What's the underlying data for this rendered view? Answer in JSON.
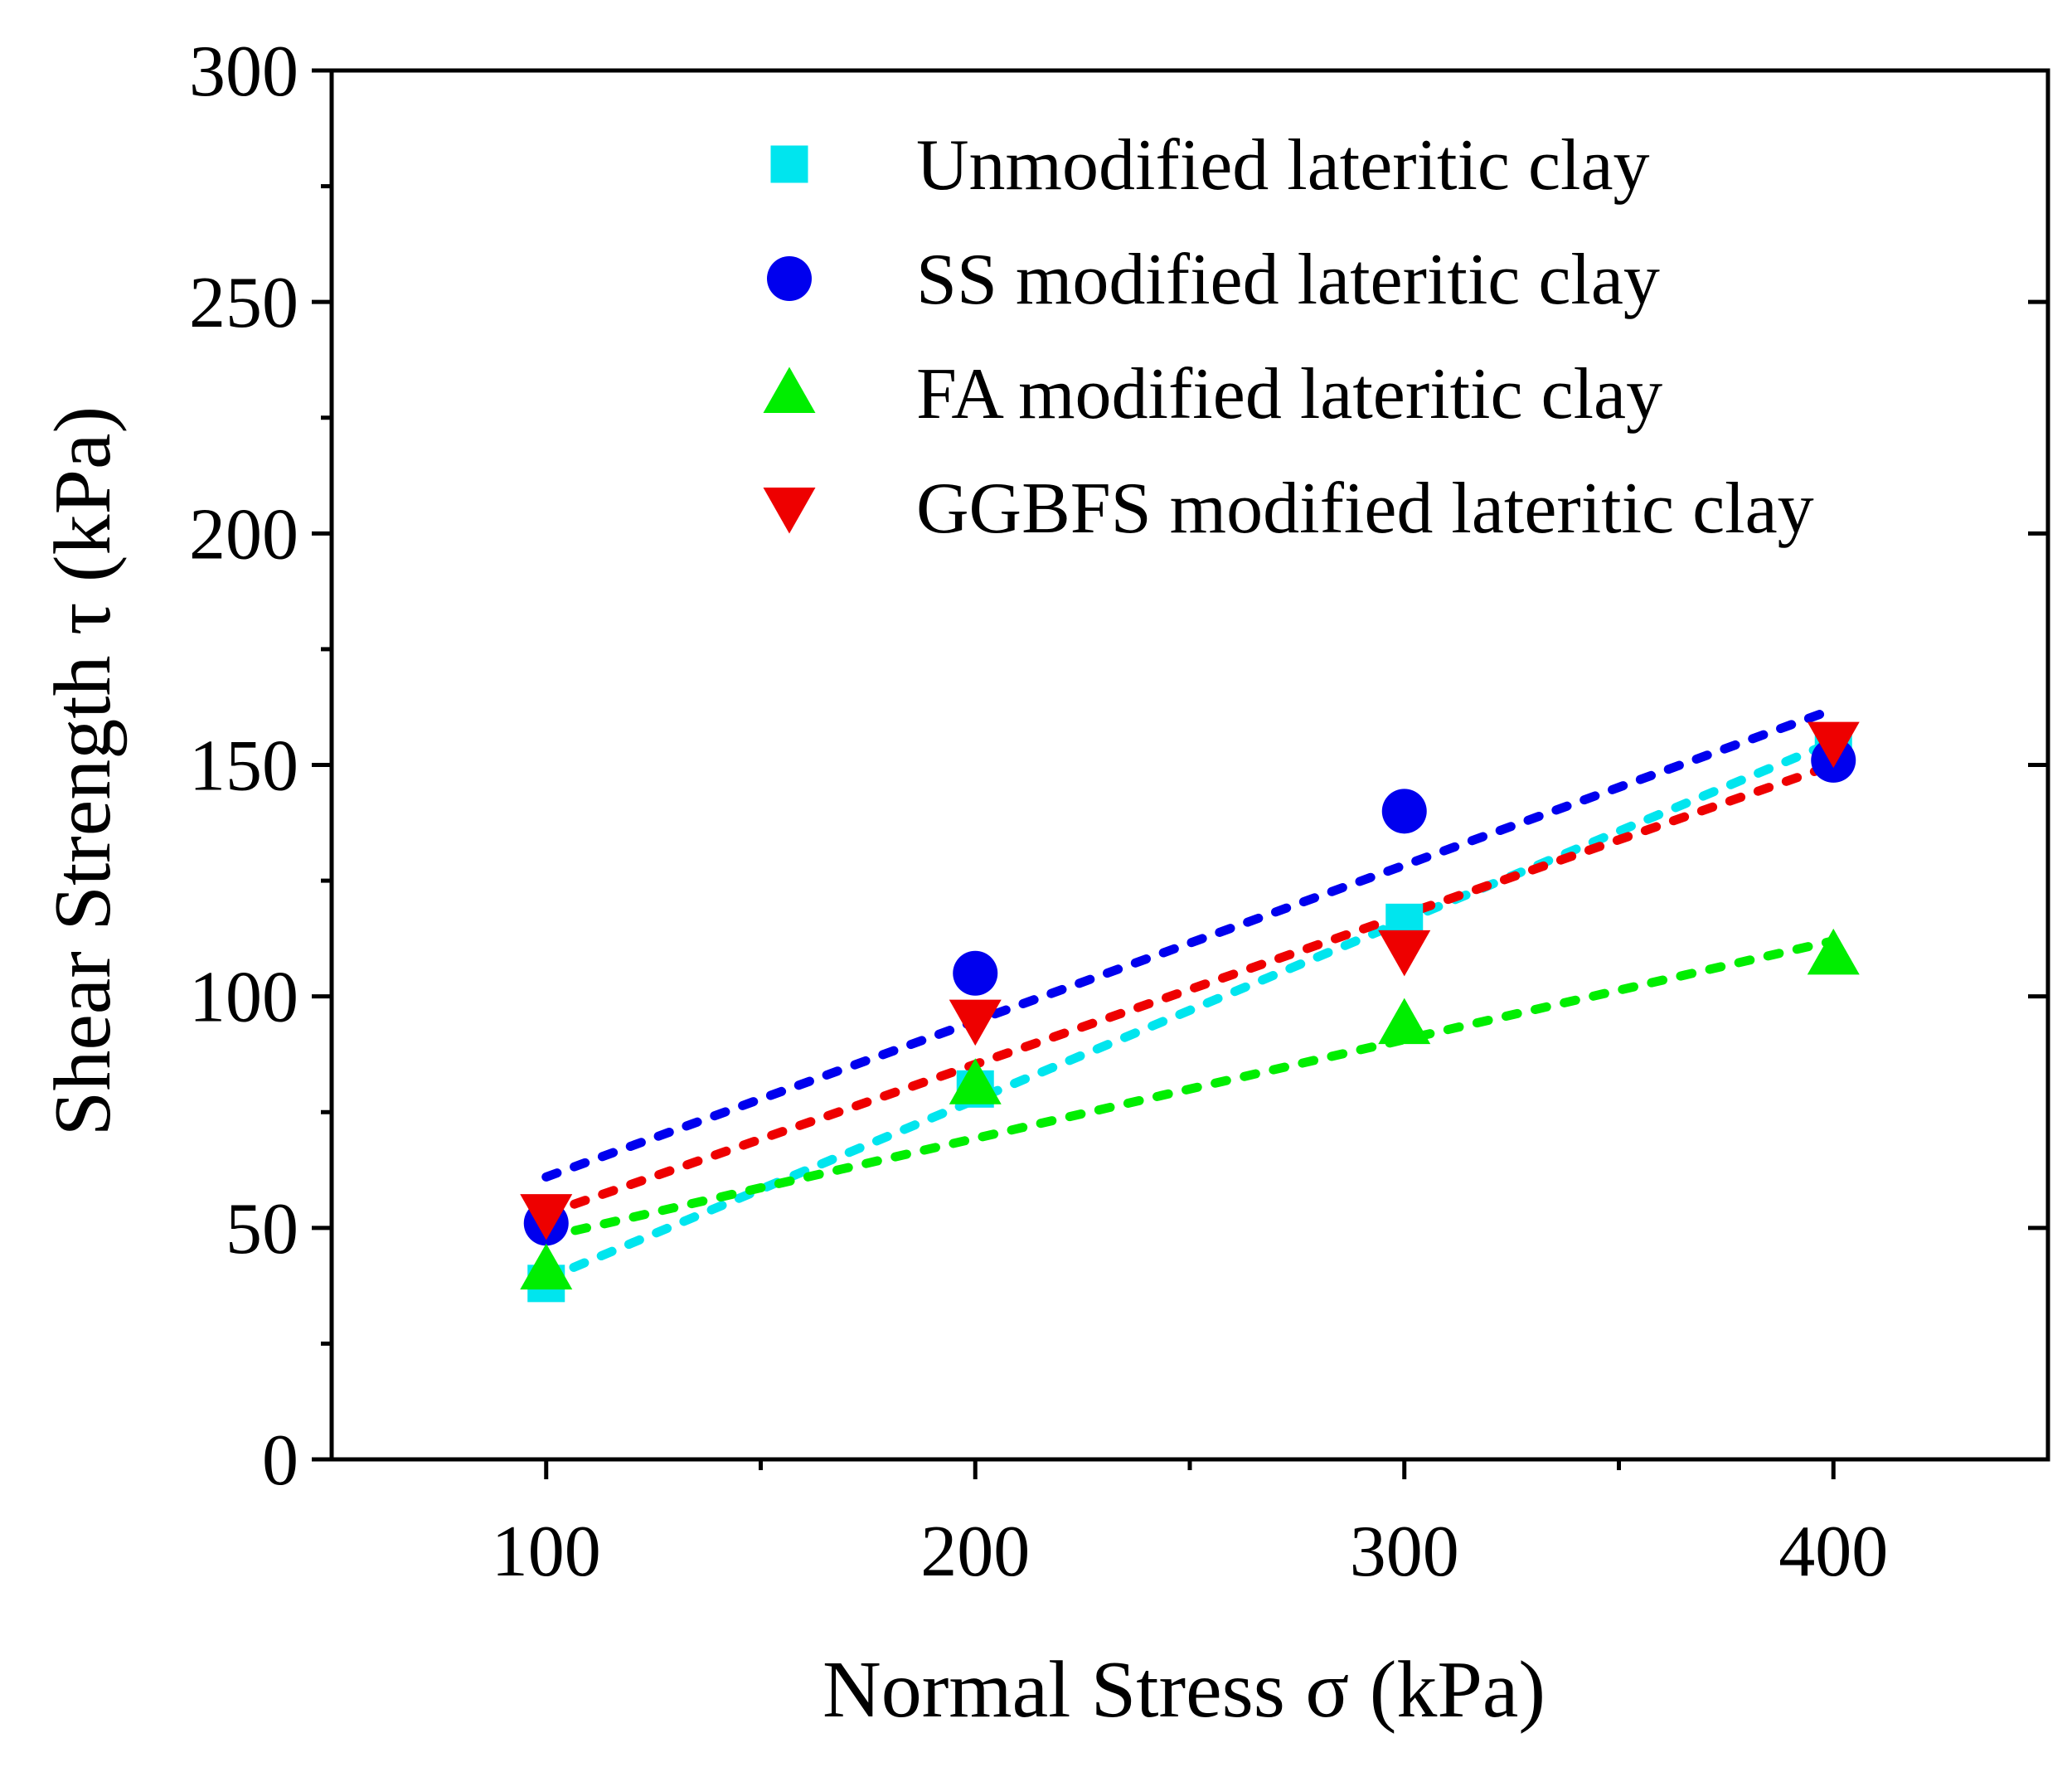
{
  "chart_data": {
    "type": "scatter",
    "title": "",
    "xlabel": "Normal Stress σ (kPa)",
    "ylabel": "Shear Strength τ (kPa)",
    "xlim": [
      50,
      450
    ],
    "ylim": [
      0,
      300
    ],
    "xticks": [
      100,
      200,
      300,
      400
    ],
    "yticks": [
      0,
      50,
      100,
      150,
      200,
      250,
      300
    ],
    "x_minor_ticks": [
      150,
      250,
      350
    ],
    "y_minor_ticks": [
      25,
      75,
      125,
      175,
      225,
      275
    ],
    "legend_position": "top-right",
    "series": [
      {
        "name": "Unmodified lateritic clay",
        "marker": "square",
        "color": "#00e5ee",
        "x": [
          100,
          200,
          300,
          400
        ],
        "y": [
          38,
          80,
          116,
          155
        ],
        "fit": {
          "x": [
            100,
            400
          ],
          "y": [
            39,
            155
          ]
        }
      },
      {
        "name": "SS modified lateritic clay",
        "marker": "circle",
        "color": "#0000ee",
        "x": [
          100,
          200,
          300,
          400
        ],
        "y": [
          51,
          105,
          140,
          151
        ],
        "fit": {
          "x": [
            100,
            400
          ],
          "y": [
            61,
            162
          ]
        }
      },
      {
        "name": "FA modified lateritic clay",
        "marker": "triangle-up",
        "color": "#00ee00",
        "x": [
          100,
          200,
          300,
          400
        ],
        "y": [
          41,
          81,
          94,
          109
        ],
        "fit": {
          "x": [
            100,
            400
          ],
          "y": [
            48,
            112
          ]
        }
      },
      {
        "name": "GGBFS modified lateritic clay",
        "marker": "triangle-down",
        "color": "#ee0000",
        "x": [
          100,
          200,
          300,
          400
        ],
        "y": [
          53,
          95,
          110,
          155
        ],
        "fit": {
          "x": [
            100,
            400
          ],
          "y": [
            53,
            150
          ]
        }
      }
    ]
  }
}
